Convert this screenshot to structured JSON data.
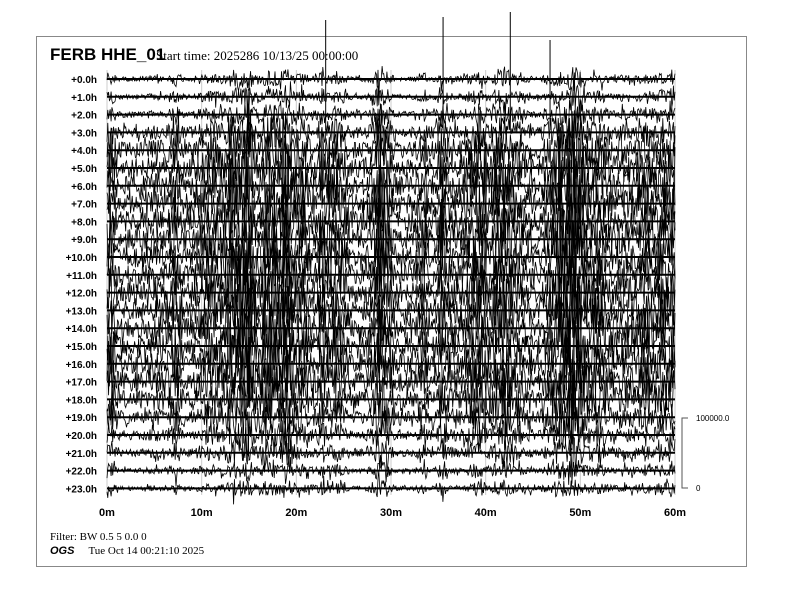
{
  "header": {
    "station": "FERB HHE_01",
    "start_time": "Start time: 2025286 10/13/25 00:00:00"
  },
  "footer": {
    "filter": "Filter: BW 0.5 5 0.0 0",
    "agency": "OGS",
    "timestamp": "Tue Oct 14 00:21:10 2025"
  },
  "chart_data": {
    "type": "line",
    "title": "FERB HHE_01",
    "row_labels": [
      "+0.0h",
      "+1.0h",
      "+2.0h",
      "+3.0h",
      "+4.0h",
      "+5.0h",
      "+6.0h",
      "+7.0h",
      "+8.0h",
      "+9.0h",
      "+10.0h",
      "+11.0h",
      "+12.0h",
      "+13.0h",
      "+14.0h",
      "+15.0h",
      "+16.0h",
      "+17.0h",
      "+18.0h",
      "+19.0h",
      "+20.0h",
      "+21.0h",
      "+22.0h",
      "+23.0h"
    ],
    "x_ticks": [
      "0m",
      "10m",
      "20m",
      "30m",
      "40m",
      "50m",
      "60m"
    ],
    "xlim": [
      0,
      60
    ],
    "relative_amplitude_by_hour": [
      0.12,
      0.15,
      0.25,
      0.5,
      0.8,
      0.9,
      0.95,
      1,
      1,
      1,
      1,
      1,
      1,
      1,
      1,
      1,
      1,
      0.95,
      0.85,
      0.6,
      0.4,
      0.3,
      0.15,
      0.12
    ],
    "scale_bar": {
      "max_label": "100000.0",
      "min_label": "0"
    },
    "trace_color": "#000000",
    "grid_color": "#cccccc"
  }
}
